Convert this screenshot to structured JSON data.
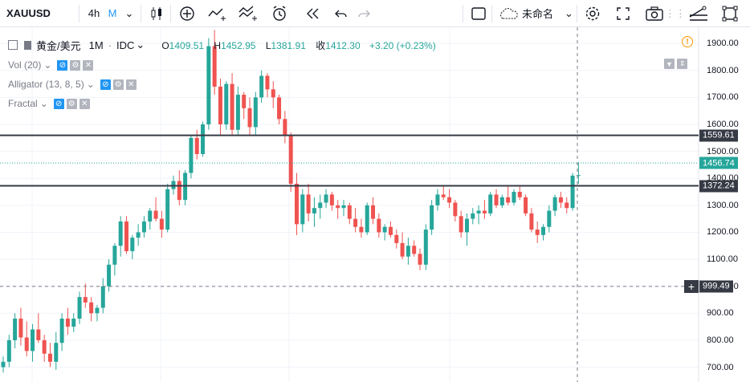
{
  "toolbar": {
    "symbol": "XAUUSD",
    "interval_4h": "4h",
    "interval_m": "M",
    "layout_name": "未命名"
  },
  "legend": {
    "symbol_title": "黄金/美元",
    "interval": "1M",
    "source": "IDC",
    "open_label": "O",
    "open": "1409.51",
    "high_label": "H",
    "high": "1452.95",
    "low_label": "L",
    "low": "1381.91",
    "close_label": "收",
    "close": "1412.30",
    "change": "+3.20 (+0.23%)",
    "indicators": [
      {
        "name": "Vol (20)"
      },
      {
        "name": "Alligator (13, 8, 5)"
      },
      {
        "name": "Fractal"
      }
    ]
  },
  "price_axis": {
    "ticks": [
      "1900.00",
      "1800.00",
      "1700.00",
      "1600.00",
      "1500.00",
      "1400.00",
      "1300.00",
      "1200.00",
      "1100.00",
      "1000.00",
      "900.00",
      "800.00",
      "700.00"
    ],
    "range": [
      645,
      1960
    ]
  },
  "horizontal_lines": [
    {
      "value": 1559.61,
      "label": "1559.61",
      "color": "#363a45"
    },
    {
      "value": 1372.24,
      "label": "1372.24",
      "color": "#363a45"
    }
  ],
  "last_price": {
    "value": 1456.74,
    "label": "1456.74",
    "color": "#26a69a"
  },
  "crosshair": {
    "value": 999.49,
    "label": "999.49"
  },
  "colors": {
    "up": "#26a69a",
    "down": "#ef5350",
    "accent": "#2196f3",
    "warn": "#ff9800"
  },
  "chart_data": {
    "type": "candlestick",
    "ylim": [
      645,
      1960
    ],
    "candles": [
      [
        700,
        740,
        680,
        720
      ],
      [
        720,
        820,
        700,
        800
      ],
      [
        800,
        900,
        770,
        880
      ],
      [
        880,
        920,
        780,
        810
      ],
      [
        810,
        870,
        740,
        760
      ],
      [
        760,
        860,
        720,
        840
      ],
      [
        840,
        900,
        790,
        800
      ],
      [
        800,
        820,
        720,
        750
      ],
      [
        750,
        790,
        700,
        720
      ],
      [
        720,
        830,
        690,
        790
      ],
      [
        790,
        900,
        760,
        880
      ],
      [
        880,
        920,
        820,
        850
      ],
      [
        850,
        900,
        830,
        880
      ],
      [
        880,
        980,
        860,
        960
      ],
      [
        960,
        1010,
        920,
        940
      ],
      [
        940,
        960,
        870,
        900
      ],
      [
        900,
        930,
        870,
        920
      ],
      [
        920,
        1030,
        900,
        1000
      ],
      [
        1000,
        1100,
        980,
        1080
      ],
      [
        1080,
        1160,
        1040,
        1150
      ],
      [
        1150,
        1260,
        1110,
        1240
      ],
      [
        1240,
        1260,
        1120,
        1130
      ],
      [
        1130,
        1190,
        1100,
        1180
      ],
      [
        1180,
        1230,
        1150,
        1200
      ],
      [
        1200,
        1260,
        1180,
        1240
      ],
      [
        1240,
        1290,
        1210,
        1280
      ],
      [
        1280,
        1330,
        1240,
        1250
      ],
      [
        1250,
        1280,
        1180,
        1210
      ],
      [
        1210,
        1380,
        1200,
        1360
      ],
      [
        1360,
        1410,
        1340,
        1390
      ],
      [
        1390,
        1430,
        1300,
        1320
      ],
      [
        1320,
        1430,
        1300,
        1420
      ],
      [
        1420,
        1560,
        1400,
        1550
      ],
      [
        1550,
        1580,
        1470,
        1490
      ],
      [
        1490,
        1610,
        1480,
        1600
      ],
      [
        1600,
        1920,
        1580,
        1890
      ],
      [
        1890,
        1950,
        1710,
        1740
      ],
      [
        1740,
        1770,
        1560,
        1600
      ],
      [
        1600,
        1760,
        1580,
        1750
      ],
      [
        1750,
        1790,
        1560,
        1580
      ],
      [
        1580,
        1740,
        1560,
        1710
      ],
      [
        1710,
        1720,
        1620,
        1660
      ],
      [
        1660,
        1700,
        1560,
        1590
      ],
      [
        1590,
        1720,
        1560,
        1700
      ],
      [
        1700,
        1800,
        1680,
        1780
      ],
      [
        1780,
        1790,
        1700,
        1730
      ],
      [
        1730,
        1760,
        1660,
        1700
      ],
      [
        1700,
        1710,
        1600,
        1620
      ],
      [
        1620,
        1650,
        1530,
        1560
      ],
      [
        1560,
        1570,
        1350,
        1380
      ],
      [
        1380,
        1420,
        1190,
        1230
      ],
      [
        1230,
        1360,
        1200,
        1340
      ],
      [
        1340,
        1380,
        1240,
        1270
      ],
      [
        1270,
        1330,
        1220,
        1290
      ],
      [
        1290,
        1340,
        1250,
        1310
      ],
      [
        1310,
        1360,
        1290,
        1340
      ],
      [
        1340,
        1350,
        1280,
        1300
      ],
      [
        1300,
        1320,
        1250,
        1290
      ],
      [
        1290,
        1320,
        1260,
        1300
      ],
      [
        1300,
        1310,
        1230,
        1250
      ],
      [
        1250,
        1290,
        1200,
        1220
      ],
      [
        1220,
        1250,
        1180,
        1200
      ],
      [
        1200,
        1310,
        1190,
        1300
      ],
      [
        1300,
        1330,
        1230,
        1250
      ],
      [
        1250,
        1270,
        1180,
        1200
      ],
      [
        1200,
        1230,
        1170,
        1220
      ],
      [
        1220,
        1240,
        1180,
        1190
      ],
      [
        1190,
        1210,
        1140,
        1160
      ],
      [
        1160,
        1200,
        1100,
        1110
      ],
      [
        1110,
        1180,
        1080,
        1150
      ],
      [
        1150,
        1170,
        1110,
        1120
      ],
      [
        1120,
        1140,
        1060,
        1080
      ],
      [
        1080,
        1230,
        1060,
        1210
      ],
      [
        1210,
        1320,
        1190,
        1300
      ],
      [
        1300,
        1360,
        1280,
        1340
      ],
      [
        1340,
        1375,
        1320,
        1330
      ],
      [
        1330,
        1360,
        1290,
        1310
      ],
      [
        1310,
        1320,
        1240,
        1260
      ],
      [
        1260,
        1280,
        1180,
        1200
      ],
      [
        1200,
        1270,
        1150,
        1250
      ],
      [
        1250,
        1290,
        1230,
        1270
      ],
      [
        1270,
        1300,
        1230,
        1280
      ],
      [
        1280,
        1320,
        1250,
        1270
      ],
      [
        1270,
        1350,
        1260,
        1340
      ],
      [
        1340,
        1360,
        1290,
        1300
      ],
      [
        1300,
        1340,
        1290,
        1330
      ],
      [
        1330,
        1370,
        1300,
        1310
      ],
      [
        1310,
        1360,
        1300,
        1350
      ],
      [
        1350,
        1370,
        1320,
        1330
      ],
      [
        1330,
        1340,
        1260,
        1270
      ],
      [
        1270,
        1290,
        1200,
        1210
      ],
      [
        1210,
        1240,
        1160,
        1190
      ],
      [
        1190,
        1230,
        1170,
        1220
      ],
      [
        1220,
        1300,
        1200,
        1280
      ],
      [
        1280,
        1340,
        1260,
        1330
      ],
      [
        1330,
        1350,
        1290,
        1310
      ],
      [
        1310,
        1330,
        1270,
        1290
      ],
      [
        1290,
        1420,
        1280,
        1410
      ],
      [
        1410,
        1460,
        1380,
        1412
      ]
    ]
  }
}
